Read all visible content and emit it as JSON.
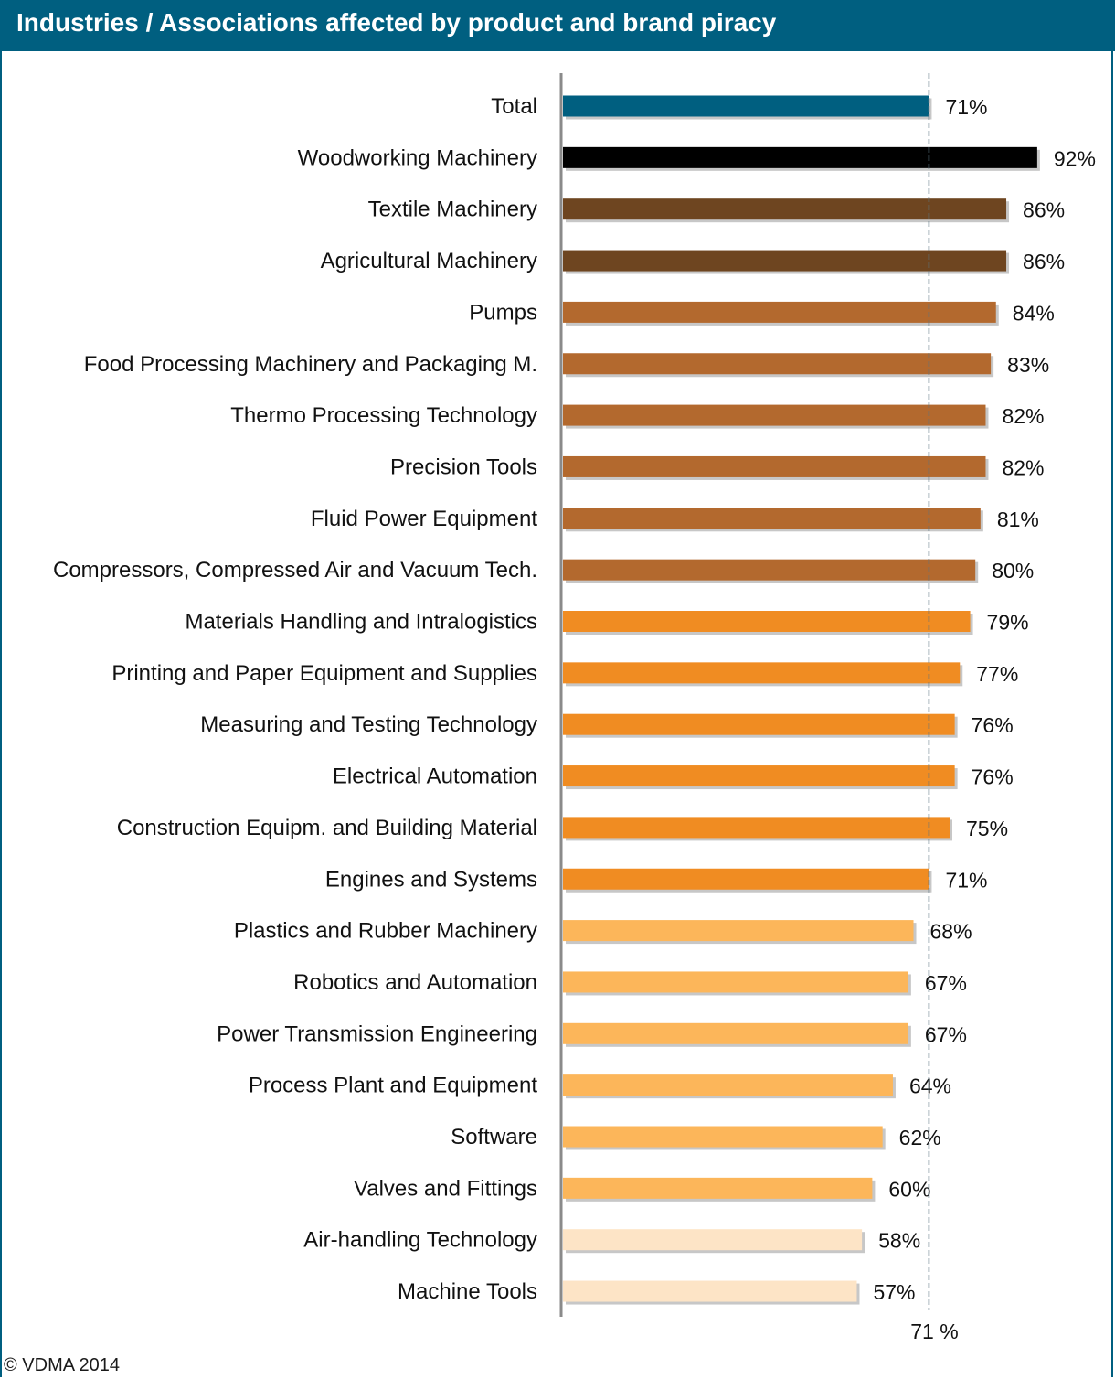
{
  "title": "Industries / Associations affected by product and brand piracy",
  "credit": "© VDMA 2014",
  "chart_data": {
    "type": "bar",
    "orientation": "horizontal",
    "title": "Industries / Associations affected by product and brand piracy",
    "categories": [
      "Total",
      "Woodworking Machinery",
      "Textile Machinery",
      "Agricultural Machinery",
      "Pumps",
      "Food Processing Machinery and Packaging M.",
      "Thermo Processing Technology",
      "Precision Tools",
      "Fluid Power Equipment",
      "Compressors, Compressed Air and Vacuum Tech.",
      "Materials Handling and Intralogistics",
      "Printing and Paper Equipment and Supplies",
      "Measuring and Testing Technology",
      "Electrical Automation",
      "Construction Equipm. and Building Material",
      "Engines and Systems",
      "Plastics and Rubber Machinery",
      "Robotics and Automation",
      "Power Transmission Engineering",
      "Process Plant and Equipment",
      "Software",
      "Valves and Fittings",
      "Air-handling Technology",
      "Machine Tools"
    ],
    "values": [
      71,
      92,
      86,
      86,
      84,
      83,
      82,
      82,
      81,
      80,
      79,
      77,
      76,
      76,
      75,
      71,
      68,
      67,
      67,
      64,
      62,
      60,
      58,
      57
    ],
    "value_labels": [
      "71%",
      "92%",
      "86%",
      "86%",
      "84%",
      "83%",
      "82%",
      "82%",
      "81%",
      "80%",
      "79%",
      "77%",
      "76%",
      "76%",
      "75%",
      "71%",
      "68%",
      "67%",
      "67%",
      "64%",
      "62%",
      "60%",
      "58%",
      "57%"
    ],
    "bar_colors": [
      "#005f80",
      "#000000",
      "#6e4520",
      "#6e4520",
      "#b3692e",
      "#b3692e",
      "#b3692e",
      "#b3692e",
      "#b3692e",
      "#b3692e",
      "#f08c22",
      "#f08c22",
      "#f08c22",
      "#f08c22",
      "#f08c22",
      "#f08c22",
      "#fcb65a",
      "#fcb65a",
      "#fcb65a",
      "#fcb65a",
      "#fcb65a",
      "#fcb65a",
      "#fde4c6",
      "#fde4c6"
    ],
    "reference_line": {
      "value": 71,
      "label": "71 %"
    },
    "xlim": [
      0,
      100
    ],
    "grid": false,
    "legend": "none"
  }
}
